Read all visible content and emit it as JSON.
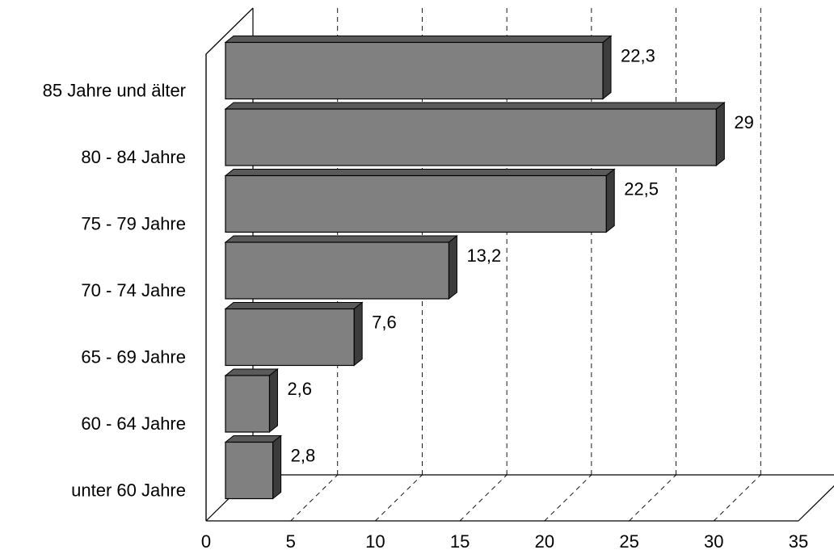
{
  "chart_data": {
    "type": "bar",
    "orientation": "horizontal",
    "three_d": true,
    "categories": [
      "85 Jahre und älter",
      "80 - 84 Jahre",
      "75 - 79 Jahre",
      "70 - 74 Jahre",
      "65 - 69 Jahre",
      "60 - 64 Jahre",
      "unter 60 Jahre"
    ],
    "values": [
      22.3,
      29,
      22.5,
      13.2,
      7.6,
      2.6,
      2.8
    ],
    "value_labels": [
      "22,3",
      "29",
      "22,5",
      "13,2",
      "7,6",
      "2,6",
      "2,8"
    ],
    "x_ticks": [
      0,
      5,
      10,
      15,
      20,
      25,
      30,
      35
    ],
    "x_tick_labels": [
      "0",
      "5",
      "10",
      "15",
      "20",
      "25",
      "30",
      "35"
    ],
    "xlim": [
      0,
      35
    ],
    "grid": true,
    "legend": false,
    "colors": {
      "bar_front": "#808080",
      "bar_top": "#5a5a5a",
      "bar_side": "#3c3c3c",
      "bar_stroke": "#000000",
      "axis": "#000000",
      "grid": "#000000"
    }
  }
}
